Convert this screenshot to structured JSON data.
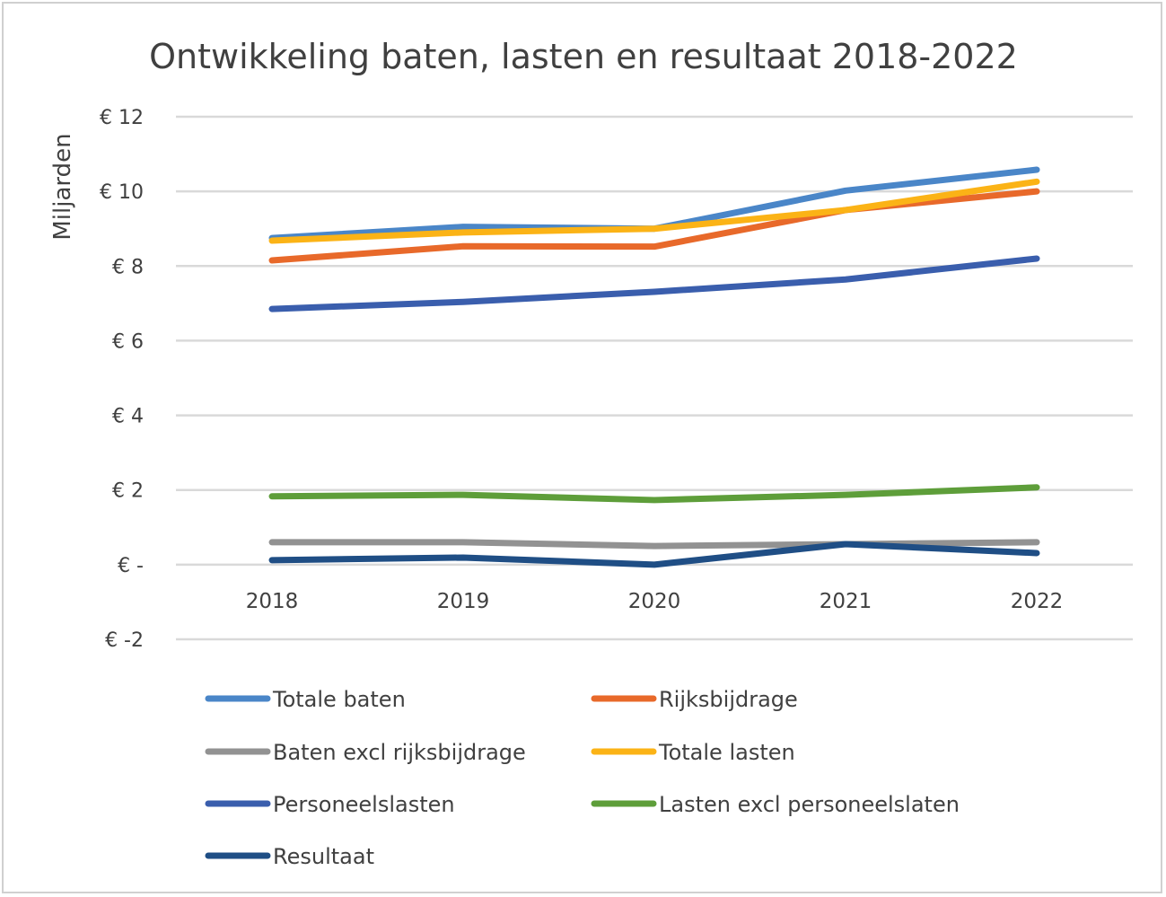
{
  "chart_data": {
    "type": "line",
    "title": "Ontwikkeling baten, lasten en resultaat 2018-2022",
    "xlabel": "",
    "ylabel": "Miljarden",
    "categories": [
      "2018",
      "2019",
      "2020",
      "2021",
      "2022"
    ],
    "ylim": [
      -2,
      12
    ],
    "yticks": [
      12,
      10,
      8,
      6,
      4,
      2,
      0,
      -2
    ],
    "ytick_labels": [
      "€ 12",
      "€ 10",
      "€ 8",
      "€ 6",
      "€ 4",
      "€ 2",
      "€ -",
      "€ -2"
    ],
    "grid": true,
    "legend_position": "bottom",
    "series": [
      {
        "name": "Totale baten",
        "color": "#4a86c8",
        "values": [
          8.75,
          9.05,
          9.0,
          10.02,
          10.58
        ]
      },
      {
        "name": "Rijksbijdrage",
        "color": "#e8692a",
        "values": [
          8.15,
          8.53,
          8.52,
          9.5,
          10.0
        ]
      },
      {
        "name": "Baten excl rijksbijdrage",
        "color": "#929292",
        "values": [
          0.6,
          0.6,
          0.5,
          0.55,
          0.6
        ]
      },
      {
        "name": "Totale lasten",
        "color": "#fbb316",
        "values": [
          8.68,
          8.9,
          9.0,
          9.5,
          10.26
        ]
      },
      {
        "name": "Personeelslasten",
        "color": "#3a5ead",
        "values": [
          6.85,
          7.04,
          7.31,
          7.64,
          8.2
        ]
      },
      {
        "name": "Lasten excl personeelslaten",
        "color": "#5e9e3a",
        "values": [
          1.83,
          1.87,
          1.73,
          1.87,
          2.07
        ]
      },
      {
        "name": "Resultaat",
        "color": "#1f4e85",
        "values": [
          0.12,
          0.19,
          0.0,
          0.55,
          0.31
        ]
      }
    ]
  }
}
